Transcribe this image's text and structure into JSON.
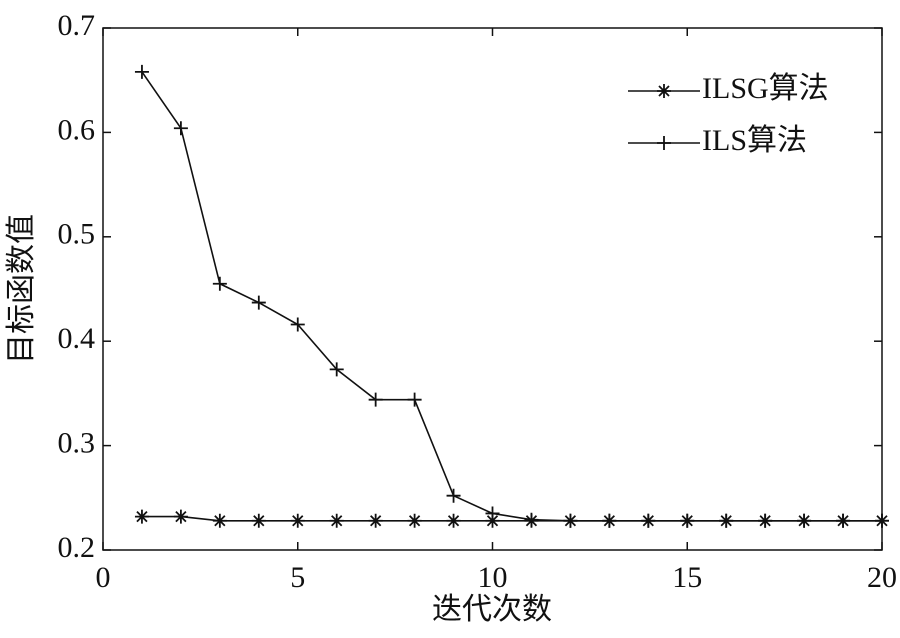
{
  "chart_data": {
    "type": "line",
    "x_label": "迭代次数",
    "y_label": "目标函数值",
    "x": [
      1,
      2,
      3,
      4,
      5,
      6,
      7,
      8,
      9,
      10,
      11,
      12,
      13,
      14,
      15,
      16,
      17,
      18,
      19,
      20
    ],
    "series": [
      {
        "name": "ILSG算法",
        "color": "#111111",
        "marker": "asterisk",
        "values": [
          0.232,
          0.232,
          0.228,
          0.228,
          0.228,
          0.228,
          0.228,
          0.228,
          0.228,
          0.228,
          0.228,
          0.228,
          0.228,
          0.228,
          0.228,
          0.228,
          0.228,
          0.228,
          0.228,
          0.228
        ]
      },
      {
        "name": "ILS算法",
        "color": "#111111",
        "marker": "plus",
        "values": [
          0.658,
          0.604,
          0.455,
          0.437,
          0.416,
          0.373,
          0.344,
          0.344,
          0.252,
          0.235,
          0.229,
          0.228,
          0.228,
          0.228,
          0.228,
          0.228,
          0.228,
          0.228,
          0.228,
          0.228
        ]
      }
    ],
    "xlim": [
      0,
      20
    ],
    "ylim": [
      0.2,
      0.7
    ],
    "xticks": [
      0,
      5,
      10,
      15,
      20
    ],
    "yticks": [
      0.2,
      0.3,
      0.4,
      0.5,
      0.6,
      0.7
    ],
    "grid": false,
    "legend": "upper right"
  }
}
